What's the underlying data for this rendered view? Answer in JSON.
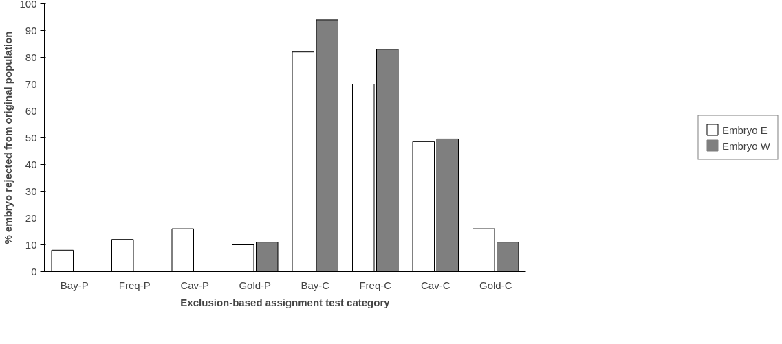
{
  "chart_data": {
    "type": "bar",
    "xlabel": "Exclusion-based assignment test category",
    "ylabel": "% embryo rejected from original population",
    "categories": [
      "Bay-P",
      "Freq-P",
      "Cav-P",
      "Gold-P",
      "Bay-C",
      "Freq-C",
      "Cav-C",
      "Gold-C"
    ],
    "series": [
      {
        "name": "Embryo E",
        "color": "#ffffff",
        "values": [
          8,
          12,
          16,
          10,
          82,
          70,
          48.5,
          16
        ]
      },
      {
        "name": "Embryo W",
        "color": "#7f7f7f",
        "values": [
          0,
          0,
          0,
          11,
          94,
          83,
          49.5,
          11
        ]
      }
    ],
    "ylim": [
      0,
      100
    ],
    "yticks": [
      0,
      10,
      20,
      30,
      40,
      50,
      60,
      70,
      80,
      90,
      100
    ],
    "grid": false,
    "legend": "right"
  }
}
